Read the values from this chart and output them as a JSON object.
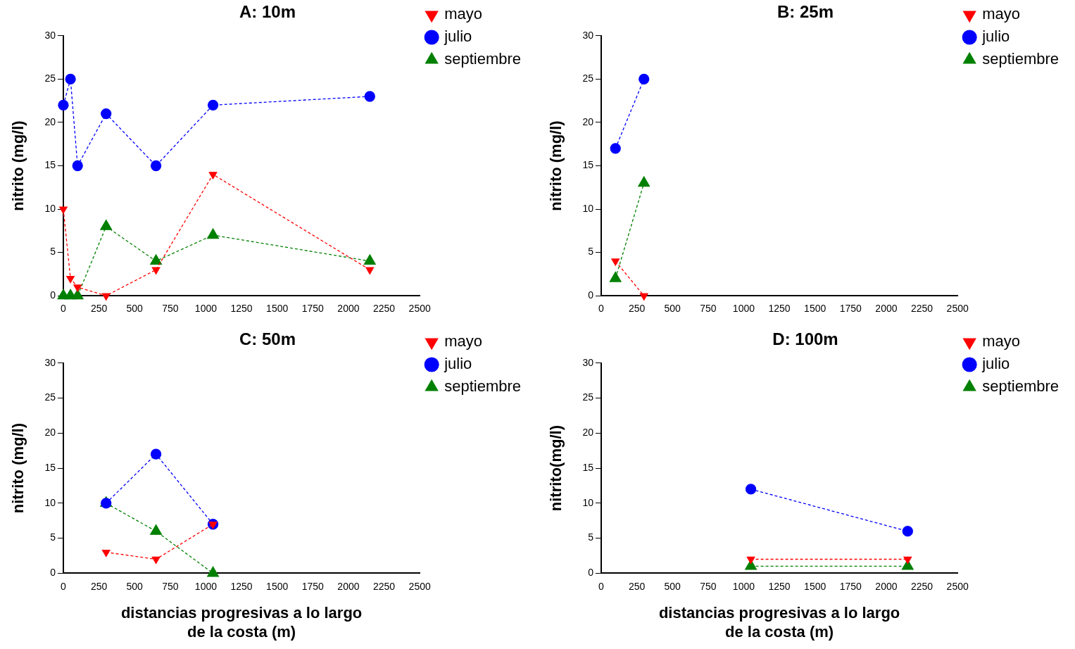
{
  "chart_data": [
    {
      "type": "line",
      "title": "A: 10m",
      "ylabel": "nitrito (mg/l)",
      "x": [
        0,
        50,
        100,
        300,
        650,
        1050,
        2150
      ],
      "xlim": [
        0,
        2500
      ],
      "xticks": [
        0,
        250,
        500,
        750,
        1000,
        1250,
        1500,
        1750,
        2000,
        2250,
        2500
      ],
      "ylim": [
        0,
        30
      ],
      "yticks": [
        0,
        5,
        10,
        15,
        20,
        25,
        30
      ],
      "legend": "top right",
      "line_style": "dashed",
      "series": [
        {
          "name": "mayo",
          "color": "#ff0000",
          "marker": "triangle_down",
          "values": [
            10,
            2,
            1,
            0,
            3,
            14,
            3
          ]
        },
        {
          "name": "julio",
          "color": "#0000ff",
          "marker": "circle",
          "values": [
            22,
            25,
            15,
            21,
            15,
            22,
            23
          ]
        },
        {
          "name": "septiembre",
          "color": "#008000",
          "marker": "triangle",
          "values": [
            0,
            0,
            0,
            8,
            4,
            7,
            4
          ]
        }
      ]
    },
    {
      "type": "line",
      "title": "B: 25m",
      "ylabel": "nitrito (mg/l)",
      "x": [
        100,
        300
      ],
      "xlim": [
        0,
        2500
      ],
      "xticks": [
        0,
        250,
        500,
        750,
        1000,
        1250,
        1500,
        1750,
        2000,
        2250,
        2500
      ],
      "ylim": [
        0,
        30
      ],
      "yticks": [
        0,
        5,
        10,
        15,
        20,
        25,
        30
      ],
      "legend": "top right",
      "line_style": "dashed",
      "series": [
        {
          "name": "mayo",
          "color": "#ff0000",
          "marker": "triangle_down",
          "values": [
            4,
            0
          ]
        },
        {
          "name": "julio",
          "color": "#0000ff",
          "marker": "circle",
          "values": [
            17,
            25
          ]
        },
        {
          "name": "septiembre",
          "color": "#008000",
          "marker": "triangle",
          "values": [
            2,
            13
          ]
        }
      ]
    },
    {
      "type": "line",
      "title": "C: 50m",
      "xlabel": "distancias progresivas a lo largo de la costa (m)",
      "ylabel": "nitrito (mg/l)",
      "x": [
        300,
        650,
        1050
      ],
      "xlim": [
        0,
        2500
      ],
      "xticks": [
        0,
        250,
        500,
        750,
        1000,
        1250,
        1500,
        1750,
        2000,
        2250,
        2500
      ],
      "ylim": [
        0,
        30
      ],
      "yticks": [
        0,
        5,
        10,
        15,
        20,
        25,
        30
      ],
      "legend": "top right",
      "line_style": "dashed",
      "series": [
        {
          "name": "mayo",
          "color": "#ff0000",
          "marker": "triangle_down",
          "values": [
            3,
            2,
            7
          ]
        },
        {
          "name": "julio",
          "color": "#0000ff",
          "marker": "circle",
          "values": [
            10,
            17,
            7
          ]
        },
        {
          "name": "septiembre",
          "color": "#008000",
          "marker": "triangle",
          "values": [
            10,
            6,
            0
          ]
        }
      ]
    },
    {
      "type": "line",
      "title": "D: 100m",
      "xlabel": "distancias progresivas a lo largo de la costa (m)",
      "ylabel": "nitrito(mg/l)",
      "x": [
        1050,
        2150
      ],
      "xlim": [
        0,
        2500
      ],
      "xticks": [
        0,
        250,
        500,
        750,
        1000,
        1250,
        1500,
        1750,
        2000,
        2250,
        2500
      ],
      "ylim": [
        0,
        30
      ],
      "yticks": [
        0,
        5,
        10,
        15,
        20,
        25,
        30
      ],
      "legend": "top right",
      "line_style": "dashed",
      "series": [
        {
          "name": "mayo",
          "color": "#ff0000",
          "marker": "triangle_down",
          "values": [
            2,
            2
          ]
        },
        {
          "name": "julio",
          "color": "#0000ff",
          "marker": "circle",
          "values": [
            12,
            6
          ]
        },
        {
          "name": "septiembre",
          "color": "#008000",
          "marker": "triangle",
          "values": [
            1,
            1
          ]
        }
      ]
    }
  ]
}
